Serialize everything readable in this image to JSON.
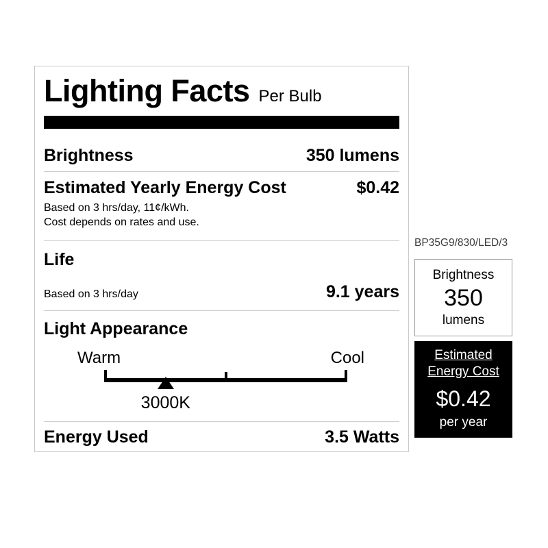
{
  "label": {
    "title": "Lighting Facts",
    "subtitle": "Per Bulb",
    "brightness": {
      "label": "Brightness",
      "value": "350 lumens"
    },
    "energy_cost": {
      "label": "Estimated Yearly Energy Cost",
      "value": "$0.42",
      "note_line1": "Based on 3 hrs/day, 11¢/kWh.",
      "note_line2": "Cost depends on rates and use."
    },
    "life": {
      "heading": "Life",
      "label": "Based on 3 hrs/day",
      "value": "9.1 years"
    },
    "light_appearance": {
      "heading": "Light Appearance",
      "warm_label": "Warm",
      "cool_label": "Cool",
      "marker_value": "3000K",
      "marker_position_pct": 25.3
    },
    "energy_used": {
      "label": "Energy Used",
      "value": "3.5 Watts"
    }
  },
  "side_panel": {
    "product_code": "BP35G9/830/LED/3",
    "brightness_box": {
      "label": "Brightness",
      "value": "350",
      "unit": "lumens"
    },
    "energy_cost_box": {
      "label_line1": "Estimated",
      "label_line2": "Energy Cost",
      "value": "$0.42",
      "unit": "per year"
    }
  },
  "colors": {
    "ink": "#000000",
    "card_border": "#c9c9c9",
    "divider": "#cccccc",
    "box_border": "#9a9a9a",
    "cost_box_bg": "#000000",
    "cost_box_text": "#ffffff"
  }
}
